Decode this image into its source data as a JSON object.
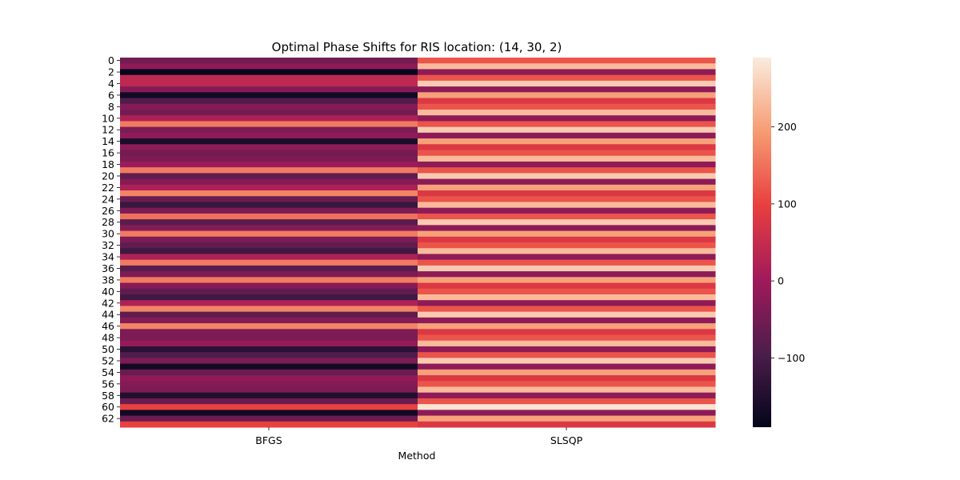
{
  "chart_data": {
    "type": "heatmap",
    "title": "Optimal Phase Shifts for RIS location: (14, 30, 2)",
    "xlabel": "Method",
    "ylabel": "",
    "columns": [
      "BFGS",
      "SLSQP"
    ],
    "rows": [
      0,
      1,
      2,
      3,
      4,
      5,
      6,
      7,
      8,
      9,
      10,
      11,
      12,
      13,
      14,
      15,
      16,
      17,
      18,
      19,
      20,
      21,
      22,
      23,
      24,
      25,
      26,
      27,
      28,
      29,
      30,
      31,
      32,
      33,
      34,
      35,
      36,
      37,
      38,
      39,
      40,
      41,
      42,
      43,
      44,
      45,
      46,
      47,
      48,
      49,
      50,
      51,
      52,
      53,
      54,
      55,
      56,
      57,
      58,
      59,
      60,
      61,
      62,
      63
    ],
    "y_tick_labels": [
      "0",
      "2",
      "4",
      "6",
      "8",
      "10",
      "12",
      "14",
      "16",
      "18",
      "20",
      "22",
      "24",
      "26",
      "28",
      "30",
      "32",
      "34",
      "36",
      "38",
      "40",
      "42",
      "44",
      "46",
      "48",
      "50",
      "52",
      "54",
      "56",
      "58",
      "60",
      "62"
    ],
    "values": {
      "BFGS": [
        -50,
        -20,
        -185,
        40,
        40,
        -30,
        -170,
        -90,
        -30,
        -50,
        20,
        160,
        -40,
        -20,
        -160,
        -20,
        -50,
        -40,
        -5,
        160,
        -70,
        -30,
        20,
        170,
        -60,
        -120,
        -40,
        150,
        -80,
        -30,
        160,
        -40,
        -70,
        -110,
        20,
        160,
        -80,
        -40,
        160,
        -30,
        -70,
        -110,
        20,
        170,
        -70,
        -30,
        170,
        -40,
        -40,
        -10,
        -140,
        -90,
        -40,
        -170,
        -60,
        -20,
        -30,
        -40,
        -150,
        -60,
        100,
        -170,
        -60,
        100
      ],
      "SLSQP": [
        120,
        230,
        -20,
        120,
        250,
        -20,
        200,
        80,
        120,
        230,
        -20,
        120,
        250,
        -20,
        200,
        80,
        120,
        230,
        -20,
        120,
        250,
        -20,
        200,
        80,
        120,
        230,
        -20,
        120,
        250,
        -20,
        200,
        80,
        120,
        230,
        -20,
        120,
        250,
        -20,
        200,
        80,
        120,
        230,
        -20,
        120,
        250,
        -20,
        200,
        80,
        120,
        230,
        -20,
        120,
        250,
        -20,
        200,
        80,
        120,
        230,
        -20,
        120,
        280,
        -20,
        200,
        80
      ]
    },
    "colorbar": {
      "min": -190,
      "max": 290,
      "ticks": [
        200,
        100,
        0,
        -100
      ],
      "tick_labels": [
        "200",
        "100",
        "0",
        "−100"
      ],
      "colormap": "rocket",
      "colormap_stops": [
        "#03051a",
        "#4c1d4b",
        "#a11a5b",
        "#e83f3f",
        "#f69c73",
        "#faebdd"
      ]
    },
    "grid": false,
    "legend": "none"
  }
}
